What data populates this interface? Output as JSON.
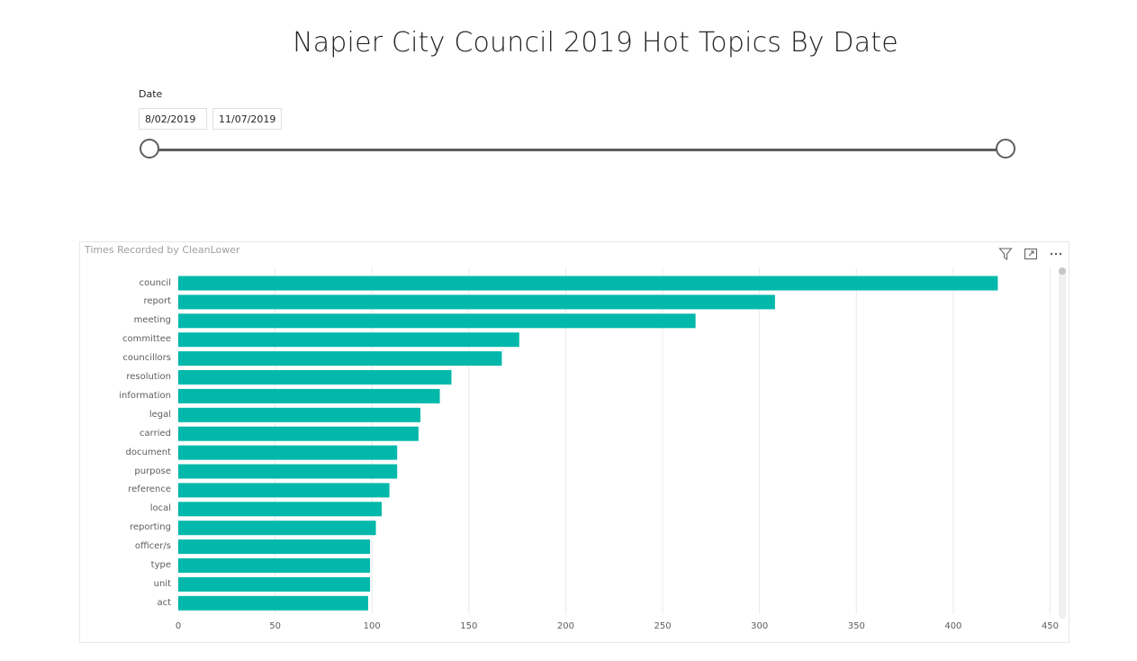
{
  "page": {
    "title": "Napier City Council 2019 Hot Topics By Date"
  },
  "slicer": {
    "label": "Date",
    "start_date": "8/02/2019",
    "end_date": "11/07/2019"
  },
  "visual": {
    "title": "Times Recorded by CleanLower",
    "header_icons": [
      "filter-icon",
      "focus-mode-icon",
      "more-options-icon"
    ]
  },
  "chart_data": {
    "type": "bar",
    "orientation": "horizontal",
    "categories": [
      "council",
      "report",
      "meeting",
      "committee",
      "councillors",
      "resolution",
      "information",
      "legal",
      "carried",
      "document",
      "purpose",
      "reference",
      "local",
      "reporting",
      "officer/s",
      "type",
      "unit",
      "act"
    ],
    "values": [
      423,
      308,
      267,
      176,
      167,
      141,
      135,
      125,
      124,
      113,
      113,
      109,
      105,
      102,
      99,
      99,
      99,
      98
    ],
    "xlim": [
      0,
      450
    ],
    "xticks": [
      "0",
      "50",
      "100",
      "150",
      "200",
      "250",
      "300",
      "350",
      "400",
      "450"
    ],
    "grid": true,
    "bar_color": "#01b8aa"
  }
}
